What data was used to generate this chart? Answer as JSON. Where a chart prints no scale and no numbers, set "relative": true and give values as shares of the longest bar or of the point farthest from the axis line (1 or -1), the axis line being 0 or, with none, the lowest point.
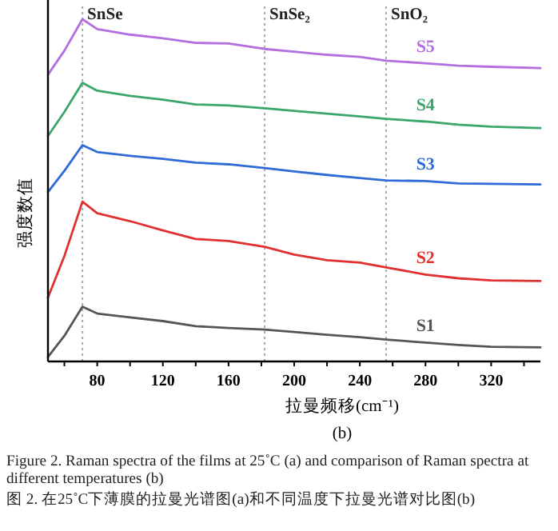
{
  "chart_data": {
    "type": "line",
    "relative": true,
    "xlabel": "拉曼频移(cm⁻¹)",
    "ylabel": "强度数值",
    "x": [
      50,
      60,
      71,
      80,
      100,
      120,
      140,
      160,
      182,
      200,
      220,
      240,
      256,
      280,
      300,
      320,
      350
    ],
    "xlim": [
      50,
      350
    ],
    "xticks": [
      {
        "value": 60,
        "label": null
      },
      80,
      {
        "value": 100,
        "label": null
      },
      120,
      {
        "value": 140,
        "label": null
      },
      160,
      {
        "value": 180,
        "label": null
      },
      200,
      {
        "value": 220,
        "label": null
      },
      240,
      {
        "value": 260,
        "label": null
      },
      280,
      {
        "value": 300,
        "label": null
      },
      320,
      {
        "value": 340,
        "label": null
      }
    ],
    "series": [
      {
        "name": "S5",
        "color": "#b36ee0",
        "values": [
          0.838,
          0.908,
          1.0,
          0.971,
          0.955,
          0.944,
          0.931,
          0.929,
          0.913,
          0.905,
          0.896,
          0.89,
          0.879,
          0.871,
          0.864,
          0.861,
          0.857
        ]
      },
      {
        "name": "S4",
        "color": "#3aa66a",
        "values": [
          0.659,
          0.729,
          0.814,
          0.791,
          0.776,
          0.765,
          0.751,
          0.748,
          0.74,
          0.732,
          0.724,
          0.716,
          0.709,
          0.701,
          0.692,
          0.686,
          0.682
        ]
      },
      {
        "name": "S3",
        "color": "#2e6bd6",
        "values": [
          0.495,
          0.557,
          0.632,
          0.612,
          0.601,
          0.592,
          0.581,
          0.576,
          0.565,
          0.555,
          0.545,
          0.536,
          0.529,
          0.527,
          0.52,
          0.519,
          0.517
        ]
      },
      {
        "name": "S2",
        "color": "#e03030",
        "values": [
          0.187,
          0.308,
          0.467,
          0.433,
          0.41,
          0.383,
          0.358,
          0.352,
          0.335,
          0.312,
          0.296,
          0.289,
          0.275,
          0.254,
          0.243,
          0.237,
          0.235
        ]
      },
      {
        "name": "S1",
        "color": "#555555",
        "values": [
          0.013,
          0.075,
          0.16,
          0.14,
          0.129,
          0.118,
          0.103,
          0.098,
          0.093,
          0.086,
          0.078,
          0.071,
          0.064,
          0.055,
          0.048,
          0.043,
          0.041
        ]
      }
    ],
    "ref_lines": [
      {
        "axis": "x",
        "value": 71,
        "label": "SnSe",
        "color": "#aaaaaa",
        "line_style": "dotted"
      },
      {
        "axis": "x",
        "value": 182,
        "label": "SnSe₂",
        "color": "#aaaaaa",
        "line_style": "dotted"
      },
      {
        "axis": "x",
        "value": 256,
        "label": "SnO₂",
        "color": "#aaaaaa",
        "line_style": "dotted"
      }
    ],
    "annotations": [
      "(b)",
      "Figure 2. Raman spectra of the films at 25˚C (a) and comparison of Raman spectra at different temperatures (b)",
      "图 2. 在25˚C下薄膜的拉曼光谱图(a)和不同温度下拉曼光谱对比图(b)"
    ]
  }
}
